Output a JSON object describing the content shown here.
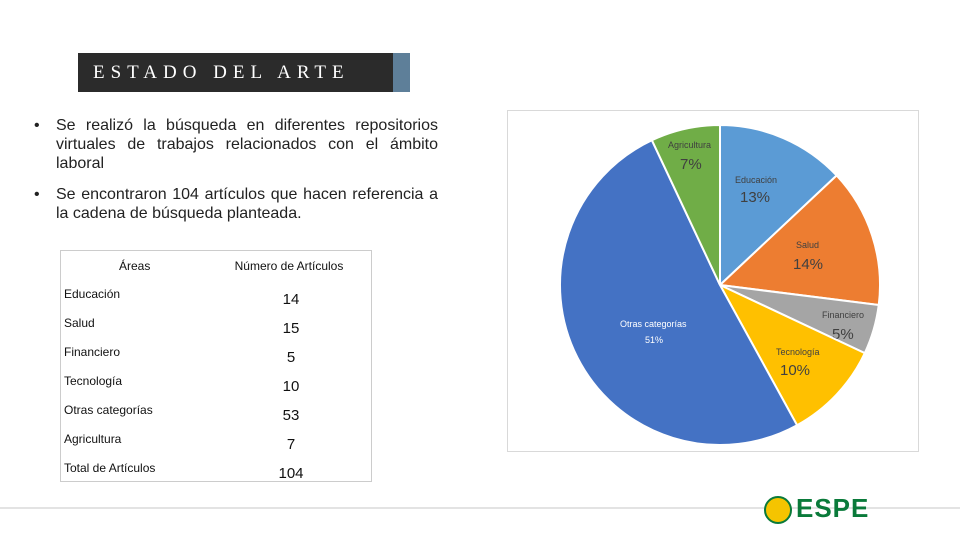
{
  "title": "ESTADO DEL ARTE",
  "bullets": [
    "Se realizó la búsqueda en diferentes repositorios virtuales de trabajos relacionados con el ámbito laboral",
    "Se encontraron 104 artículos que hacen referencia a la cadena de búsqueda planteada."
  ],
  "table": {
    "header": [
      "Áreas",
      "Número de Artículos"
    ],
    "rows": [
      [
        "Educación",
        14
      ],
      [
        "Salud",
        15
      ],
      [
        "Financiero",
        5
      ],
      [
        "Tecnología",
        10
      ],
      [
        "Otras categorías",
        53
      ],
      [
        "Agricultura",
        7
      ],
      [
        "Total de Artículos",
        104
      ]
    ]
  },
  "logo": "ESPE",
  "chart_data": {
    "type": "pie",
    "categories": [
      "Educación",
      "Salud",
      "Financiero",
      "Tecnología",
      "Otras categorías",
      "Agricultura"
    ],
    "values": [
      13,
      14,
      5,
      10,
      51,
      7
    ],
    "value_labels": [
      "13%",
      "14%",
      "5%",
      "10%",
      "51%",
      "7%"
    ],
    "colors": [
      "#5b9bd5",
      "#ed7d31",
      "#a5a5a5",
      "#ffc000",
      "#4472c4",
      "#70ad47"
    ]
  }
}
